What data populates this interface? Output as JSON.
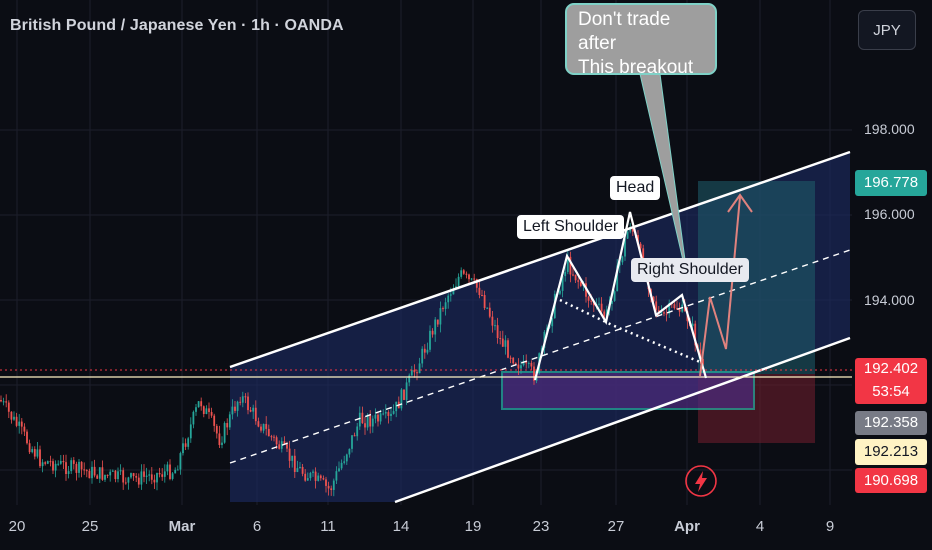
{
  "header": {
    "title": "British Pound / Japanese Yen · 1h · OANDA",
    "currency": "JPY"
  },
  "chart_data": {
    "type": "candlestick",
    "title": "British Pound / Japanese Yen · 1h · OANDA",
    "y_ticks": [
      "198.000",
      "196.000",
      "194.000"
    ],
    "x_ticks": [
      "20",
      "25",
      "Mar",
      "6",
      "11",
      "14",
      "19",
      "23",
      "27",
      "Apr",
      "4",
      "9"
    ],
    "ylim": [
      189.7,
      199.0
    ],
    "grid": true,
    "price_badges": [
      {
        "name": "target",
        "value": "196.778",
        "color": "#26a69a"
      },
      {
        "name": "last-price",
        "value": "192.402",
        "color": "#f23645"
      },
      {
        "name": "countdown",
        "value": "53:54",
        "color": "#f23645"
      },
      {
        "name": "reference-grey",
        "value": "192.358",
        "color": "#787b86"
      },
      {
        "name": "reference-yellow",
        "value": "192.213",
        "color": "#fff3c4"
      },
      {
        "name": "stop",
        "value": "190.698",
        "color": "#f23645"
      }
    ],
    "annotations": [
      "Left Shoulder",
      "Head",
      "Right Shoulder",
      "Don't trade after\nThis breakout"
    ],
    "pattern": "ascending channel with head and shoulders",
    "position": {
      "entry": 192.4,
      "target": 196.78,
      "stop": 190.7
    }
  },
  "labels": {
    "left_shoulder": "Left Shoulder",
    "head": "Head",
    "right_shoulder": "Right Shoulder",
    "callout_line1": "Don't trade after",
    "callout_line2": "This breakout"
  }
}
